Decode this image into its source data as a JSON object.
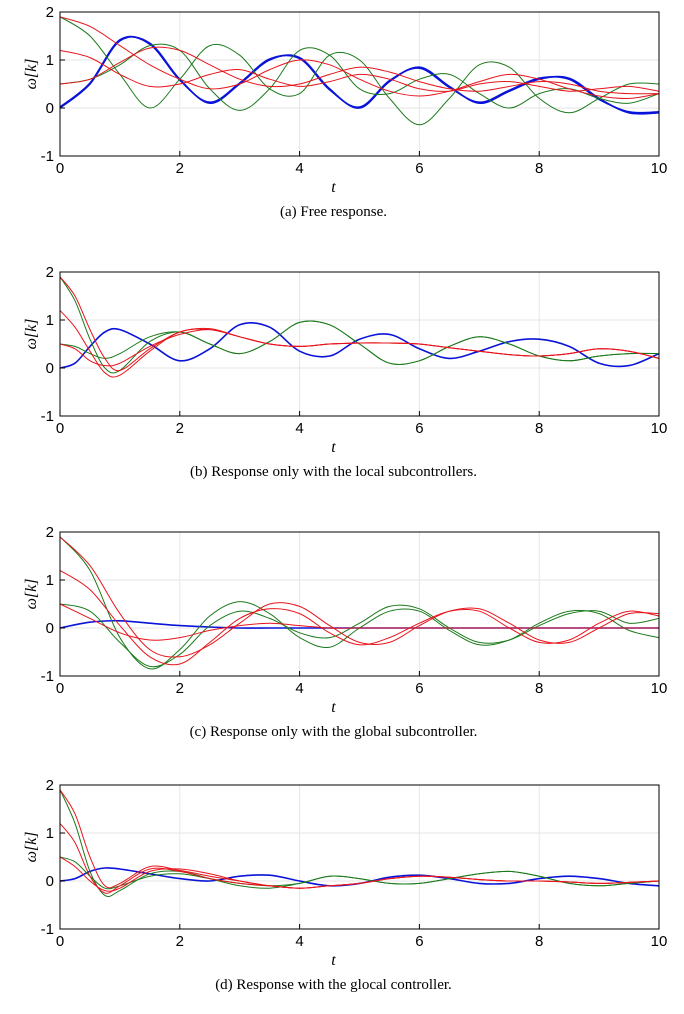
{
  "figure_colors": {
    "red": "#e8141c",
    "green": "#1b7a1b",
    "blue": "#0a14d8",
    "grid": "#e6e6e6",
    "axis": "#000000"
  },
  "chart_data": [
    {
      "type": "line",
      "caption": "(a) Free response.",
      "xlabel": "t",
      "ylabel": "ω[k]",
      "xlim": [
        0,
        10
      ],
      "ylim": [
        -1,
        2
      ],
      "xticks": [
        "0",
        "2",
        "4",
        "6",
        "8",
        "10"
      ],
      "yticks": [
        "-1",
        "0",
        "1",
        "2"
      ],
      "grid": true,
      "x": [
        0,
        0.5,
        1,
        1.5,
        2,
        2.5,
        3,
        3.5,
        4,
        4.5,
        5,
        5.5,
        6,
        6.5,
        7,
        7.5,
        8,
        8.5,
        9,
        9.5,
        10
      ],
      "series": [
        {
          "color": "blue",
          "values": [
            0.0,
            0.5,
            1.4,
            1.35,
            0.6,
            0.1,
            0.5,
            1.0,
            1.05,
            0.4,
            0.0,
            0.55,
            0.85,
            0.45,
            0.1,
            0.35,
            0.6,
            0.62,
            0.2,
            -0.1,
            -0.1
          ]
        },
        {
          "color": "blue",
          "values": [
            0.02,
            0.52,
            1.42,
            1.33,
            0.58,
            0.12,
            0.52,
            1.02,
            1.03,
            0.38,
            0.02,
            0.57,
            0.83,
            0.43,
            0.12,
            0.37,
            0.62,
            0.6,
            0.18,
            -0.08,
            -0.08
          ]
        },
        {
          "color": "green",
          "values": [
            1.9,
            1.5,
            0.7,
            0.0,
            0.6,
            1.3,
            1.1,
            0.4,
            0.3,
            1.1,
            1.0,
            0.2,
            -0.35,
            0.2,
            0.9,
            0.85,
            0.2,
            -0.1,
            0.2,
            0.5,
            0.5
          ]
        },
        {
          "color": "green",
          "values": [
            0.5,
            0.6,
            0.9,
            1.3,
            1.2,
            0.4,
            -0.05,
            0.4,
            1.2,
            1.1,
            0.4,
            0.3,
            0.6,
            0.7,
            0.3,
            0.0,
            0.3,
            0.4,
            0.2,
            0.1,
            0.3
          ]
        },
        {
          "color": "red",
          "values": [
            1.2,
            1.05,
            0.7,
            0.45,
            0.5,
            0.7,
            0.8,
            0.6,
            0.45,
            0.55,
            0.7,
            0.6,
            0.4,
            0.35,
            0.5,
            0.55,
            0.45,
            0.35,
            0.4,
            0.45,
            0.35
          ]
        },
        {
          "color": "red",
          "values": [
            0.5,
            0.6,
            0.95,
            1.25,
            1.2,
            0.9,
            0.6,
            0.45,
            0.5,
            0.7,
            0.85,
            0.75,
            0.55,
            0.4,
            0.35,
            0.45,
            0.55,
            0.5,
            0.35,
            0.3,
            0.3
          ]
        },
        {
          "color": "red",
          "values": [
            1.9,
            1.7,
            1.3,
            0.9,
            0.6,
            0.4,
            0.5,
            0.8,
            1.0,
            0.9,
            0.6,
            0.35,
            0.25,
            0.35,
            0.55,
            0.7,
            0.6,
            0.4,
            0.25,
            0.2,
            0.3
          ]
        }
      ]
    },
    {
      "type": "line",
      "caption": "(b) Response only with the local subcontrollers.",
      "xlabel": "t",
      "ylabel": "ω[k]",
      "xlim": [
        0,
        10
      ],
      "ylim": [
        -1,
        2
      ],
      "xticks": [
        "0",
        "2",
        "4",
        "6",
        "8",
        "10"
      ],
      "yticks": [
        "-1",
        "0",
        "1",
        "2"
      ],
      "grid": true,
      "x": [
        0,
        0.25,
        0.5,
        0.75,
        1,
        1.5,
        2,
        2.5,
        3,
        3.5,
        4,
        4.5,
        5,
        5.5,
        6,
        6.5,
        7,
        7.5,
        8,
        8.5,
        9,
        9.5,
        10
      ],
      "series": [
        {
          "color": "blue",
          "values": [
            0.0,
            0.1,
            0.45,
            0.75,
            0.8,
            0.5,
            0.15,
            0.4,
            0.9,
            0.85,
            0.35,
            0.25,
            0.6,
            0.7,
            0.4,
            0.2,
            0.35,
            0.55,
            0.6,
            0.45,
            0.1,
            0.05,
            0.3
          ]
        },
        {
          "color": "green",
          "values": [
            1.9,
            1.4,
            0.6,
            0.0,
            -0.05,
            0.55,
            0.75,
            0.5,
            0.3,
            0.55,
            0.95,
            0.9,
            0.5,
            0.1,
            0.15,
            0.45,
            0.65,
            0.5,
            0.25,
            0.15,
            0.25,
            0.3,
            0.3
          ]
        },
        {
          "color": "green",
          "values": [
            0.5,
            0.45,
            0.3,
            0.2,
            0.3,
            0.65,
            0.75,
            0.5,
            0.3,
            0.55,
            0.95,
            0.9,
            0.5,
            0.1,
            0.15,
            0.45,
            0.65,
            0.5,
            0.25,
            0.15,
            0.25,
            0.3,
            0.3
          ]
        },
        {
          "color": "red",
          "values": [
            1.2,
            0.85,
            0.35,
            -0.1,
            -0.15,
            0.35,
            0.75,
            0.8,
            0.65,
            0.5,
            0.45,
            0.5,
            0.52,
            0.52,
            0.5,
            0.42,
            0.35,
            0.28,
            0.25,
            0.3,
            0.4,
            0.35,
            0.2
          ]
        },
        {
          "color": "red",
          "values": [
            1.9,
            1.5,
            0.8,
            0.2,
            -0.05,
            0.4,
            0.75,
            0.82,
            0.65,
            0.5,
            0.45,
            0.5,
            0.52,
            0.52,
            0.5,
            0.42,
            0.35,
            0.28,
            0.25,
            0.3,
            0.4,
            0.35,
            0.2
          ]
        },
        {
          "color": "red",
          "values": [
            0.5,
            0.4,
            0.15,
            0.05,
            0.1,
            0.45,
            0.7,
            0.8,
            0.65,
            0.5,
            0.45,
            0.5,
            0.52,
            0.52,
            0.5,
            0.42,
            0.35,
            0.28,
            0.25,
            0.3,
            0.4,
            0.35,
            0.2
          ]
        }
      ]
    },
    {
      "type": "line",
      "caption": "(c) Response only with the global subcontroller.",
      "xlabel": "t",
      "ylabel": "ω[k]",
      "xlim": [
        0,
        10
      ],
      "ylim": [
        -1,
        2
      ],
      "xticks": [
        "0",
        "2",
        "4",
        "6",
        "8",
        "10"
      ],
      "yticks": [
        "-1",
        "0",
        "1",
        "2"
      ],
      "grid": true,
      "x": [
        0,
        0.5,
        1,
        1.5,
        2,
        2.5,
        3,
        3.5,
        4,
        4.5,
        5,
        5.5,
        6,
        6.5,
        7,
        7.5,
        8,
        8.5,
        9,
        9.5,
        10
      ],
      "series": [
        {
          "color": "blue",
          "values": [
            0.0,
            0.12,
            0.15,
            0.1,
            0.05,
            0.02,
            0.0,
            0.0,
            0.0,
            0.0,
            0.0,
            0.0,
            0.0,
            0.0,
            0.0,
            0.0,
            0.0,
            0.0,
            0.0,
            0.0,
            0.0
          ]
        },
        {
          "color": "green",
          "values": [
            1.9,
            1.2,
            -0.2,
            -0.85,
            -0.45,
            0.25,
            0.55,
            0.3,
            -0.2,
            -0.4,
            0.0,
            0.35,
            0.35,
            -0.05,
            -0.35,
            -0.25,
            0.1,
            0.35,
            0.3,
            -0.05,
            -0.2
          ]
        },
        {
          "color": "green",
          "values": [
            0.5,
            0.35,
            -0.3,
            -0.8,
            -0.55,
            0.05,
            0.35,
            0.2,
            -0.1,
            -0.2,
            0.1,
            0.45,
            0.4,
            0.0,
            -0.3,
            -0.25,
            0.05,
            0.3,
            0.35,
            0.1,
            0.2
          ]
        },
        {
          "color": "red",
          "values": [
            1.2,
            0.8,
            0.05,
            -0.6,
            -0.75,
            -0.3,
            0.2,
            0.4,
            0.3,
            -0.1,
            -0.35,
            -0.2,
            0.1,
            0.35,
            0.35,
            0.0,
            -0.3,
            -0.25,
            0.1,
            0.35,
            0.25
          ]
        },
        {
          "color": "red",
          "values": [
            1.9,
            1.3,
            0.3,
            -0.45,
            -0.6,
            -0.35,
            0.1,
            0.5,
            0.45,
            0.05,
            -0.3,
            -0.3,
            0.05,
            0.35,
            0.4,
            0.1,
            -0.25,
            -0.3,
            0.0,
            0.3,
            0.3
          ]
        },
        {
          "color": "red",
          "values": [
            0.5,
            0.2,
            -0.1,
            -0.25,
            -0.2,
            -0.05,
            0.05,
            0.1,
            0.05,
            0.0,
            0.0,
            0.0,
            0.0,
            0.0,
            0.0,
            0.0,
            0.0,
            0.0,
            0.0,
            0.0,
            0.0
          ]
        }
      ]
    },
    {
      "type": "line",
      "caption": "(d) Response with the glocal controller.",
      "xlabel": "t",
      "ylabel": "ω[k]",
      "xlim": [
        0,
        10
      ],
      "ylim": [
        -1,
        2
      ],
      "xticks": [
        "0",
        "2",
        "4",
        "6",
        "8",
        "10"
      ],
      "yticks": [
        "-1",
        "0",
        "1",
        "2"
      ],
      "grid": true,
      "x": [
        0,
        0.25,
        0.5,
        0.75,
        1,
        1.5,
        2,
        2.5,
        3,
        3.5,
        4,
        4.5,
        5,
        5.5,
        6,
        6.5,
        7,
        7.5,
        8,
        8.5,
        9,
        9.5,
        10
      ],
      "series": [
        {
          "color": "blue",
          "values": [
            0.0,
            0.05,
            0.2,
            0.27,
            0.25,
            0.15,
            0.05,
            0.0,
            0.1,
            0.12,
            0.0,
            -0.1,
            -0.05,
            0.08,
            0.12,
            0.05,
            -0.05,
            -0.05,
            0.05,
            0.1,
            0.05,
            -0.05,
            -0.1
          ]
        },
        {
          "color": "green",
          "values": [
            1.9,
            1.2,
            0.2,
            -0.3,
            -0.2,
            0.15,
            0.2,
            0.05,
            -0.1,
            -0.15,
            -0.05,
            0.1,
            0.05,
            -0.05,
            -0.05,
            0.05,
            0.15,
            0.2,
            0.1,
            -0.05,
            -0.1,
            -0.05,
            0.0
          ]
        },
        {
          "color": "green",
          "values": [
            0.5,
            0.4,
            0.1,
            -0.15,
            -0.1,
            0.1,
            0.15,
            0.05,
            -0.05,
            -0.1,
            -0.05,
            0.1,
            0.05,
            -0.05,
            -0.05,
            0.05,
            0.15,
            0.2,
            0.1,
            -0.05,
            -0.1,
            -0.05,
            0.0
          ]
        },
        {
          "color": "red",
          "values": [
            1.2,
            0.8,
            0.1,
            -0.25,
            -0.1,
            0.25,
            0.2,
            0.05,
            -0.05,
            -0.1,
            -0.15,
            -0.1,
            -0.05,
            0.05,
            0.1,
            0.08,
            0.03,
            0.0,
            0.0,
            -0.02,
            -0.05,
            -0.03,
            0.0
          ]
        },
        {
          "color": "red",
          "values": [
            1.9,
            1.4,
            0.5,
            -0.1,
            -0.05,
            0.3,
            0.22,
            0.1,
            0.0,
            -0.1,
            -0.15,
            -0.1,
            -0.05,
            0.05,
            0.1,
            0.08,
            0.03,
            0.0,
            0.0,
            -0.02,
            -0.05,
            -0.03,
            0.0
          ]
        },
        {
          "color": "red",
          "values": [
            0.5,
            0.3,
            0.0,
            -0.2,
            -0.15,
            0.2,
            0.25,
            0.15,
            0.0,
            -0.1,
            -0.15,
            -0.1,
            -0.05,
            0.05,
            0.1,
            0.08,
            0.03,
            0.0,
            0.0,
            -0.02,
            -0.05,
            -0.03,
            0.0
          ]
        }
      ]
    }
  ]
}
